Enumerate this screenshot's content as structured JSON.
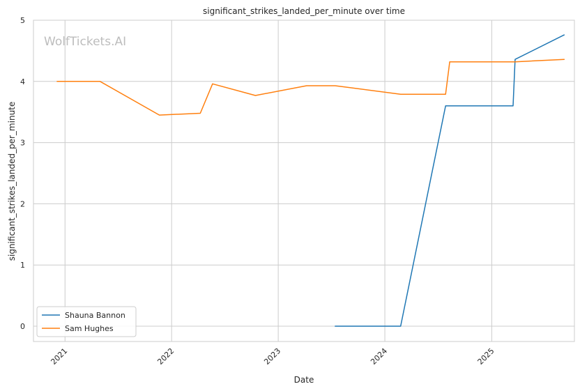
{
  "chart_data": {
    "type": "line",
    "title": "significant_strikes_landed_per_minute over time",
    "xlabel": "Date",
    "ylabel": "significant_strikes_landed_per_minute",
    "watermark": "WolfTickets.AI",
    "x_axis_type": "date",
    "xlim": [
      "2020-09-15",
      "2025-10-11"
    ],
    "ylim": [
      -0.25,
      5
    ],
    "x_ticks": [
      {
        "date": "2021-01-01",
        "label": "2021"
      },
      {
        "date": "2022-01-01",
        "label": "2022"
      },
      {
        "date": "2023-01-01",
        "label": "2023"
      },
      {
        "date": "2024-01-01",
        "label": "2024"
      },
      {
        "date": "2025-01-01",
        "label": "2025"
      }
    ],
    "y_ticks": [
      0,
      1,
      2,
      3,
      4,
      5
    ],
    "grid": true,
    "legend_position": "lower-left",
    "series": [
      {
        "name": "Shauna Bannon",
        "color": "#1f77b4",
        "points": [
          {
            "x": "2023-07-15",
            "y": 0.0
          },
          {
            "x": "2024-02-24",
            "y": 0.0
          },
          {
            "x": "2024-07-27",
            "y": 3.6
          },
          {
            "x": "2025-03-15",
            "y": 3.6
          },
          {
            "x": "2025-03-22",
            "y": 4.36
          },
          {
            "x": "2025-09-06",
            "y": 4.76
          }
        ]
      },
      {
        "name": "Sam Hughes",
        "color": "#ff7f0e",
        "points": [
          {
            "x": "2020-12-05",
            "y": 4.0
          },
          {
            "x": "2021-05-01",
            "y": 4.0
          },
          {
            "x": "2021-11-20",
            "y": 3.45
          },
          {
            "x": "2022-04-09",
            "y": 3.48
          },
          {
            "x": "2022-05-21",
            "y": 3.96
          },
          {
            "x": "2022-10-15",
            "y": 3.77
          },
          {
            "x": "2023-04-08",
            "y": 3.93
          },
          {
            "x": "2023-07-15",
            "y": 3.93
          },
          {
            "x": "2024-02-24",
            "y": 3.79
          },
          {
            "x": "2024-07-27",
            "y": 3.79
          },
          {
            "x": "2024-08-10",
            "y": 4.32
          },
          {
            "x": "2025-03-22",
            "y": 4.32
          },
          {
            "x": "2025-09-06",
            "y": 4.36
          }
        ]
      }
    ]
  }
}
